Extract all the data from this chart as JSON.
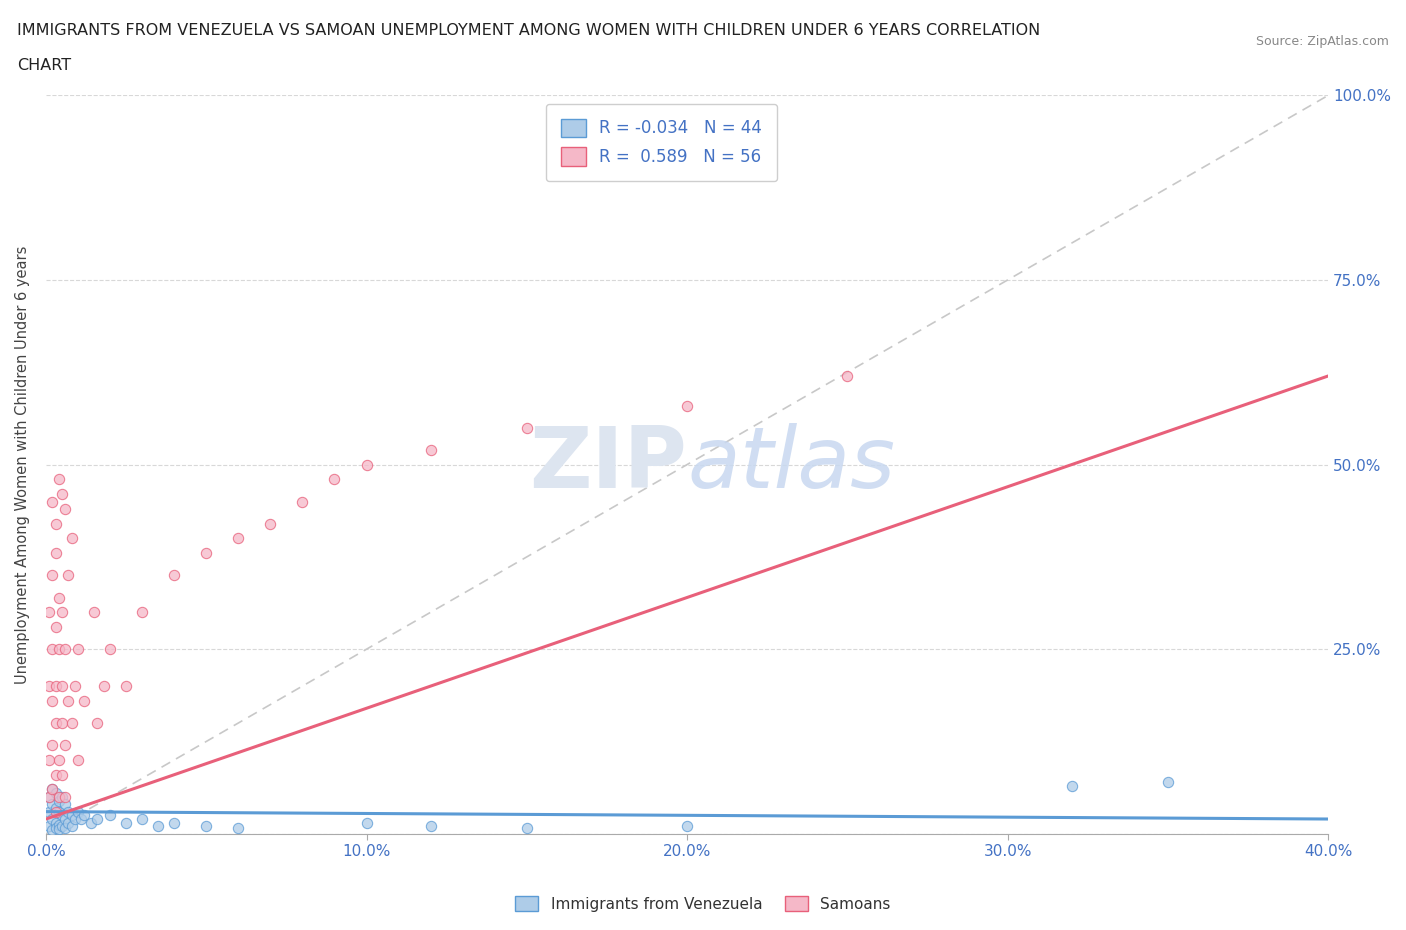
{
  "title_line1": "IMMIGRANTS FROM VENEZUELA VS SAMOAN UNEMPLOYMENT AMONG WOMEN WITH CHILDREN UNDER 6 YEARS CORRELATION",
  "title_line2": "CHART",
  "source": "Source: ZipAtlas.com",
  "ylabel": "Unemployment Among Women with Children Under 6 years",
  "xlim": [
    0.0,
    0.4
  ],
  "ylim": [
    0.0,
    1.0
  ],
  "x_ticks": [
    0.0,
    0.1,
    0.2,
    0.3,
    0.4
  ],
  "x_tick_labels": [
    "0.0%",
    "10.0%",
    "20.0%",
    "30.0%",
    "40.0%"
  ],
  "y_ticks": [
    0.0,
    0.25,
    0.5,
    0.75,
    1.0
  ],
  "y_tick_labels": [
    "",
    "25.0%",
    "50.0%",
    "75.0%",
    "100.0%"
  ],
  "legend_labels": [
    "Immigrants from Venezuela",
    "Samoans"
  ],
  "legend_R": [
    -0.034,
    0.589
  ],
  "legend_N": [
    44,
    56
  ],
  "color_venezuela": "#aecce8",
  "color_samoan": "#f5b8c8",
  "color_trendline_venezuela": "#5b9bd5",
  "color_trendline_samoan": "#e8607a",
  "color_diagonal": "#c8c8c8",
  "watermark_color": "#dde5f0",
  "background_color": "#ffffff",
  "venezuela_x": [
    0.001,
    0.001,
    0.001,
    0.002,
    0.002,
    0.002,
    0.002,
    0.003,
    0.003,
    0.003,
    0.003,
    0.004,
    0.004,
    0.004,
    0.004,
    0.005,
    0.005,
    0.005,
    0.006,
    0.006,
    0.006,
    0.007,
    0.007,
    0.008,
    0.008,
    0.009,
    0.01,
    0.011,
    0.012,
    0.014,
    0.016,
    0.02,
    0.025,
    0.03,
    0.035,
    0.04,
    0.05,
    0.06,
    0.1,
    0.12,
    0.15,
    0.2,
    0.32,
    0.35
  ],
  "venezuela_y": [
    0.05,
    0.03,
    0.01,
    0.04,
    0.02,
    0.06,
    0.005,
    0.035,
    0.015,
    0.055,
    0.008,
    0.03,
    0.012,
    0.045,
    0.007,
    0.025,
    0.05,
    0.01,
    0.02,
    0.04,
    0.008,
    0.03,
    0.015,
    0.025,
    0.01,
    0.02,
    0.03,
    0.02,
    0.025,
    0.015,
    0.02,
    0.025,
    0.015,
    0.02,
    0.01,
    0.015,
    0.01,
    0.008,
    0.015,
    0.01,
    0.008,
    0.01,
    0.065,
    0.07
  ],
  "samoan_x": [
    0.001,
    0.001,
    0.001,
    0.001,
    0.002,
    0.002,
    0.002,
    0.002,
    0.002,
    0.003,
    0.003,
    0.003,
    0.003,
    0.003,
    0.003,
    0.004,
    0.004,
    0.004,
    0.004,
    0.005,
    0.005,
    0.005,
    0.005,
    0.006,
    0.006,
    0.006,
    0.007,
    0.007,
    0.008,
    0.009,
    0.01,
    0.01,
    0.012,
    0.015,
    0.016,
    0.018,
    0.02,
    0.025,
    0.03,
    0.04,
    0.05,
    0.06,
    0.07,
    0.08,
    0.09,
    0.1,
    0.12,
    0.15,
    0.2,
    0.25,
    0.002,
    0.003,
    0.004,
    0.005,
    0.006,
    0.008
  ],
  "samoan_y": [
    0.1,
    0.2,
    0.3,
    0.05,
    0.12,
    0.25,
    0.35,
    0.06,
    0.18,
    0.08,
    0.15,
    0.28,
    0.38,
    0.03,
    0.2,
    0.1,
    0.25,
    0.05,
    0.32,
    0.15,
    0.2,
    0.08,
    0.3,
    0.12,
    0.25,
    0.05,
    0.18,
    0.35,
    0.15,
    0.2,
    0.1,
    0.25,
    0.18,
    0.3,
    0.15,
    0.2,
    0.25,
    0.2,
    0.3,
    0.35,
    0.38,
    0.4,
    0.42,
    0.45,
    0.48,
    0.5,
    0.52,
    0.55,
    0.58,
    0.62,
    0.45,
    0.42,
    0.48,
    0.46,
    0.44,
    0.4
  ],
  "trendline_samoan_x0": 0.0,
  "trendline_samoan_y0": 0.02,
  "trendline_samoan_x1": 0.4,
  "trendline_samoan_y1": 0.62,
  "trendline_ven_x0": 0.0,
  "trendline_ven_y0": 0.03,
  "trendline_ven_x1": 0.4,
  "trendline_ven_y1": 0.02
}
